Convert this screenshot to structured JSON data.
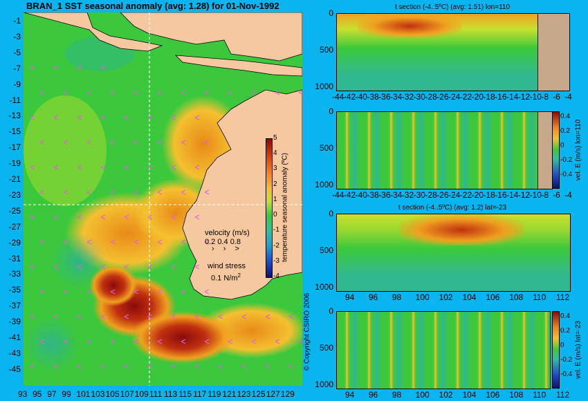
{
  "main_map": {
    "title": "BRAN_1  SST seasonal anomaly  (avg: 1.28) for 01-Nov-1992",
    "y_ticks": [
      "-1",
      "-3",
      "-5",
      "-7",
      "-9",
      "-11",
      "-13",
      "-15",
      "-17",
      "-19",
      "-21",
      "-23",
      "-25",
      "-27",
      "-29",
      "-31",
      "-33",
      "-35",
      "-37",
      "-39",
      "-41",
      "-43",
      "-45"
    ],
    "x_ticks": [
      "93",
      "95",
      "97",
      "99",
      "101",
      "103",
      "105",
      "107",
      "109",
      "111",
      "113",
      "115",
      "117",
      "119",
      "121",
      "123",
      "125",
      "127",
      "129"
    ],
    "colorbar": {
      "label": "temperature seasonal anomaly (ºC)",
      "ticks": [
        "5",
        "4",
        "3",
        "2",
        "1",
        "0",
        "-1",
        "-2",
        "-3",
        "-4"
      ]
    },
    "velocity_legend": {
      "title": "velocity (m/s)",
      "values": "0.2 0.4 0.8",
      "arrows": "› › >"
    },
    "wind_legend": {
      "title": "wind stress",
      "value": "0.1 N/m",
      "exponent": "2"
    },
    "copyright": "© Copyright CSIRO 2006",
    "colors": {
      "land": "#f5c8a0",
      "ocean_mid": "#3cc83c",
      "warm": "#f0a020",
      "hot": "#a01010",
      "cool": "#30b0a0",
      "wind_arrow": "#e060e0",
      "crosshair": "#ffffff"
    }
  },
  "panels": [
    {
      "title": "t section (-4..5ºC) (avg: 1.51) lon=110",
      "x_ticks": [
        "-44",
        "-42",
        "-40",
        "-38",
        "-36",
        "-34",
        "-32",
        "-30",
        "-28",
        "-26",
        "-24",
        "-22",
        "-20",
        "-18",
        "-16",
        "-14",
        "-12",
        "-10",
        "-8",
        "-6",
        "-4"
      ],
      "y_ticks": [
        "0",
        "500",
        "1000"
      ],
      "colorbar": null
    },
    {
      "title": "",
      "x_ticks": [
        "-44",
        "-42",
        "-40",
        "-38",
        "-36",
        "-34",
        "-32",
        "-30",
        "-28",
        "-26",
        "-24",
        "-22",
        "-20",
        "-18",
        "-16",
        "-14",
        "-12",
        "-10",
        "-8",
        "-6",
        "-4"
      ],
      "y_ticks": [
        "0",
        "500",
        "1000"
      ],
      "colorbar": {
        "label": "vel. E (m/s) lon=110",
        "ticks": [
          "0.4",
          "0.2",
          "0",
          "-0.2",
          "-0.4"
        ]
      }
    },
    {
      "title": "t section (-4..5ºC) (avg: 1.2) lat=-23",
      "x_ticks": [
        "94",
        "96",
        "98",
        "100",
        "102",
        "104",
        "106",
        "108",
        "110",
        "112"
      ],
      "y_ticks": [
        "0",
        "500",
        "1000"
      ],
      "colorbar": null
    },
    {
      "title": "",
      "x_ticks": [
        "94",
        "96",
        "98",
        "100",
        "102",
        "104",
        "106",
        "108",
        "110",
        "112"
      ],
      "y_ticks": [
        "0",
        "500",
        "1000"
      ],
      "colorbar": {
        "label": "vel. E (m/s) lat=-23",
        "ticks": [
          "0.4",
          "0.2",
          "0",
          "-0.2",
          "-0.4"
        ]
      }
    }
  ],
  "chart_data": [
    {
      "type": "heatmap",
      "title": "BRAN_1  SST seasonal anomaly  (avg: 1.28) for 01-Nov-1992",
      "x_range": [
        92,
        130
      ],
      "y_range": [
        -45,
        0
      ],
      "value_range": [
        -4,
        5
      ],
      "average": 1.28,
      "date": "01-Nov-1992",
      "units": "ºC"
    },
    {
      "type": "heatmap",
      "title": "t section (-4..5ºC) (avg: 1.51) lon=110",
      "x_range": [
        -45,
        -3
      ],
      "y_range": [
        0,
        1050
      ],
      "value_range": [
        -4,
        5
      ],
      "average": 1.51
    },
    {
      "type": "heatmap",
      "title": "vel. E (m/s) lon=110",
      "x_range": [
        -45,
        -3
      ],
      "y_range": [
        0,
        1050
      ],
      "value_range": [
        -0.4,
        0.4
      ]
    },
    {
      "type": "heatmap",
      "title": "t section (-4..5ºC) (avg: 1.2) lat=-23",
      "x_range": [
        92.5,
        114
      ],
      "y_range": [
        0,
        1050
      ],
      "value_range": [
        -4,
        5
      ],
      "average": 1.2
    },
    {
      "type": "heatmap",
      "title": "vel. E (m/s) lat=-23",
      "x_range": [
        92.5,
        114
      ],
      "y_range": [
        0,
        1050
      ],
      "value_range": [
        -0.4,
        0.4
      ]
    }
  ]
}
